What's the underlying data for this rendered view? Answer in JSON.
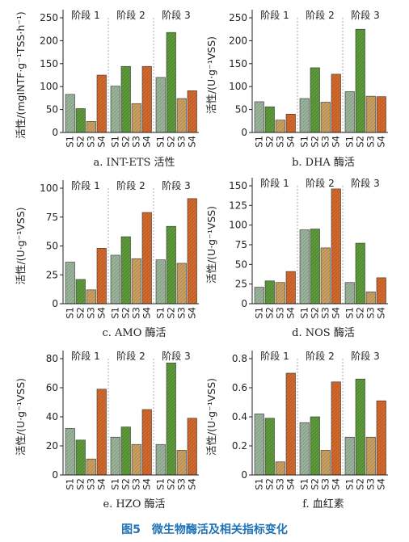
{
  "figure_title": "图5　微生物酶活及相关指标变化",
  "colors": {
    "S1": "#9bb29b",
    "S2": "#5e9a3c",
    "S3": "#c9a063",
    "S4": "#d26a2e",
    "axis": "#222222",
    "title": "#1f73b7"
  },
  "chart_data": [
    {
      "type": "bar",
      "caption": "a. INT-ETS 活性",
      "ylabel": "活性/(mgINTF·g⁻¹TSS·h⁻¹)",
      "ylim": [
        0,
        250
      ],
      "yticks": [
        0,
        50,
        100,
        150,
        200,
        250
      ],
      "stages": [
        "阶段 1",
        "阶段 2",
        "阶段 3"
      ],
      "categories": [
        "S1",
        "S2",
        "S3",
        "S4"
      ],
      "series": [
        {
          "stage": "阶段 1",
          "values": [
            83,
            52,
            24,
            125
          ]
        },
        {
          "stage": "阶段 2",
          "values": [
            101,
            144,
            63,
            144
          ]
        },
        {
          "stage": "阶段 3",
          "values": [
            120,
            218,
            74,
            91
          ]
        }
      ]
    },
    {
      "type": "bar",
      "caption": "b. DHA 酶活",
      "ylabel": "活性/(U·g⁻¹VSS)",
      "ylim": [
        0,
        250
      ],
      "yticks": [
        0,
        50,
        100,
        150,
        200,
        250
      ],
      "stages": [
        "阶段 1",
        "阶段 2",
        "阶段 3"
      ],
      "categories": [
        "S1",
        "S2",
        "S3",
        "S4"
      ],
      "series": [
        {
          "stage": "阶段 1",
          "values": [
            67,
            56,
            27,
            40
          ]
        },
        {
          "stage": "阶段 2",
          "values": [
            74,
            141,
            66,
            127
          ]
        },
        {
          "stage": "阶段 3",
          "values": [
            89,
            225,
            79,
            78
          ]
        }
      ]
    },
    {
      "type": "bar",
      "caption": "c. AMO 酶活",
      "ylabel": "活性/(U·g⁻¹VSS)",
      "ylim": [
        0,
        100
      ],
      "yticks": [
        0,
        25,
        50,
        75,
        100
      ],
      "stages": [
        "阶段 1",
        "阶段 2",
        "阶段 3"
      ],
      "categories": [
        "S1",
        "S2",
        "S3",
        "S4"
      ],
      "series": [
        {
          "stage": "阶段 1",
          "values": [
            36,
            21,
            12,
            48
          ]
        },
        {
          "stage": "阶段 2",
          "values": [
            42,
            58,
            39,
            79
          ]
        },
        {
          "stage": "阶段 3",
          "values": [
            38,
            67,
            35,
            91
          ]
        }
      ]
    },
    {
      "type": "bar",
      "caption": "d. NOS 酶活",
      "ylabel": "活性/(U·g⁻¹VSS)",
      "ylim": [
        0,
        150
      ],
      "yticks": [
        0,
        25,
        50,
        75,
        100,
        125,
        150
      ],
      "stages": [
        "阶段 1",
        "阶段 2",
        "阶段 3"
      ],
      "categories": [
        "S1",
        "S2",
        "S3",
        "S4"
      ],
      "series": [
        {
          "stage": "阶段 1",
          "values": [
            21,
            29,
            27,
            41
          ]
        },
        {
          "stage": "阶段 2",
          "values": [
            94,
            95,
            71,
            146
          ]
        },
        {
          "stage": "阶段 3",
          "values": [
            27,
            77,
            15,
            33
          ]
        }
      ]
    },
    {
      "type": "bar",
      "caption": "e. HZO 酶活",
      "ylabel": "活性/(U·g⁻¹VSS)",
      "ylim": [
        0,
        80
      ],
      "yticks": [
        0,
        20,
        40,
        60,
        80
      ],
      "stages": [
        "阶段 1",
        "阶段 2",
        "阶段 3"
      ],
      "categories": [
        "S1",
        "S2",
        "S3",
        "S4"
      ],
      "series": [
        {
          "stage": "阶段 1",
          "values": [
            32,
            24,
            11,
            59
          ]
        },
        {
          "stage": "阶段 2",
          "values": [
            26,
            33,
            21,
            45
          ]
        },
        {
          "stage": "阶段 3",
          "values": [
            21,
            77,
            17,
            39
          ]
        }
      ]
    },
    {
      "type": "bar",
      "caption": "f. 血红素",
      "ylabel": "活性/(U·g⁻¹VSS)",
      "ylim": [
        0,
        0.8
      ],
      "yticks": [
        "0",
        "0.2",
        "0.4",
        "0.6",
        "0.8"
      ],
      "stages": [
        "阶段 1",
        "阶段 2",
        "阶段 3"
      ],
      "categories": [
        "S1",
        "S2",
        "S3",
        "S4"
      ],
      "series": [
        {
          "stage": "阶段 1",
          "values": [
            0.42,
            0.39,
            0.09,
            0.7
          ]
        },
        {
          "stage": "阶段 2",
          "values": [
            0.36,
            0.4,
            0.17,
            0.64
          ]
        },
        {
          "stage": "阶段 3",
          "values": [
            0.26,
            0.66,
            0.26,
            0.51
          ]
        }
      ]
    }
  ]
}
